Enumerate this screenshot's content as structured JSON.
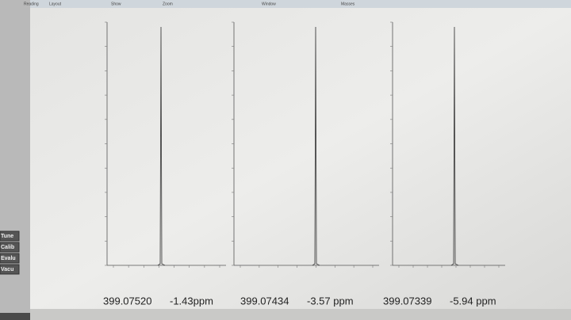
{
  "menu": [
    "Reading",
    "Layout",
    "Show",
    "Zoom",
    "Window",
    "Masses"
  ],
  "sidebar": [
    "Tune",
    "Calib",
    "Evalu",
    "Vacu"
  ],
  "panels": [
    {
      "mass": "399.07520",
      "ppm": "-1.43ppm"
    },
    {
      "mass": "399.07434",
      "ppm": "-3.57 ppm"
    },
    {
      "mass": "399.07339",
      "ppm": "-5.94 ppm"
    }
  ]
}
